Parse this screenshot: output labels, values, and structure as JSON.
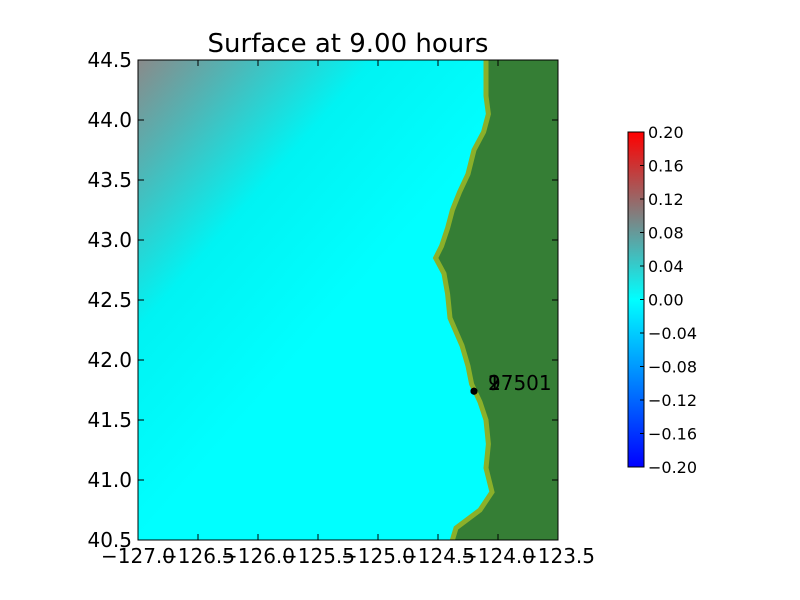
{
  "chart_data": {
    "type": "heatmap",
    "title": "Surface at 9.00 hours",
    "xlabel": "",
    "ylabel": "",
    "xlim": [
      -127.0,
      -123.5
    ],
    "ylim": [
      40.5,
      44.5
    ],
    "x_ticks": [
      -127.0,
      -126.5,
      -126.0,
      -125.5,
      -125.0,
      -124.5,
      -124.0,
      -123.5
    ],
    "x_tick_labels": [
      "−127.0",
      "−126.5",
      "−126.0",
      "−125.5",
      "−125.0",
      "−124.5",
      "−124.0",
      "−123.5"
    ],
    "y_ticks": [
      40.5,
      41.0,
      41.5,
      42.0,
      42.5,
      43.0,
      43.5,
      44.0,
      44.5
    ],
    "y_tick_labels": [
      "40.5",
      "41.0",
      "41.5",
      "42.0",
      "42.5",
      "43.0",
      "43.5",
      "44.0",
      "44.5"
    ],
    "colors": {
      "land": "#357e35",
      "shoreline": "#8bb02a",
      "ocean": "#00ffff",
      "ocean_elevated": "#808080",
      "gauge_marker": "#000000"
    },
    "colorbar": {
      "range": [
        -0.2,
        0.2
      ],
      "ticks": [
        0.2,
        0.16,
        0.12,
        0.08,
        0.04,
        0.0,
        -0.04,
        -0.08,
        -0.12,
        -0.16,
        -0.2
      ],
      "tick_labels": [
        "0.20",
        "0.16",
        "0.12",
        "0.08",
        "0.04",
        "0.00",
        "−0.04",
        "−0.08",
        "−0.12",
        "−0.16",
        "−0.20"
      ],
      "colors": [
        "#0000ff",
        "#00ffff",
        "#808080",
        "#ff0000"
      ]
    },
    "coastline": [
      [
        -124.1,
        44.5
      ],
      [
        -124.1,
        44.35
      ],
      [
        -124.1,
        44.2
      ],
      [
        -124.08,
        44.05
      ],
      [
        -124.12,
        43.9
      ],
      [
        -124.2,
        43.75
      ],
      [
        -124.25,
        43.55
      ],
      [
        -124.32,
        43.4
      ],
      [
        -124.38,
        43.25
      ],
      [
        -124.42,
        43.1
      ],
      [
        -124.47,
        42.95
      ],
      [
        -124.52,
        42.85
      ],
      [
        -124.45,
        42.72
      ],
      [
        -124.42,
        42.55
      ],
      [
        -124.4,
        42.35
      ],
      [
        -124.3,
        42.12
      ],
      [
        -124.25,
        41.95
      ],
      [
        -124.22,
        41.8
      ],
      [
        -124.15,
        41.65
      ],
      [
        -124.1,
        41.5
      ],
      [
        -124.08,
        41.3
      ],
      [
        -124.1,
        41.1
      ],
      [
        -124.05,
        40.9
      ],
      [
        -124.15,
        40.75
      ],
      [
        -124.35,
        40.6
      ],
      [
        -124.38,
        40.5
      ]
    ],
    "gauges": [
      {
        "id": "1",
        "x": -124.2,
        "y": 41.74
      },
      {
        "id": "2",
        "x": -124.2,
        "y": 41.74
      },
      {
        "id": "97501",
        "x": -124.2,
        "y": 41.74
      }
    ]
  }
}
